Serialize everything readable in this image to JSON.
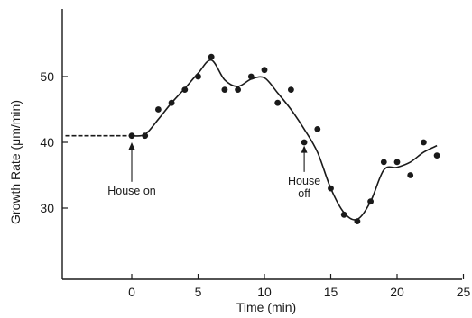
{
  "chart_data": {
    "type": "scatter",
    "title": "",
    "xlabel": "Time (min)",
    "ylabel": "Growth Rate (μm/min)",
    "xlim": [
      -5,
      25
    ],
    "ylim": [
      20,
      58
    ],
    "x_ticks": [
      0,
      5,
      10,
      15,
      20,
      25
    ],
    "y_ticks": [
      30,
      40,
      50
    ],
    "grid": false,
    "series": [
      {
        "kind": "points",
        "x": [
          0,
          1,
          2,
          3,
          4,
          5,
          6,
          7,
          8,
          9,
          10,
          11,
          12,
          13,
          14,
          15,
          16,
          17,
          18,
          19,
          20,
          21,
          22,
          23
        ],
        "y": [
          41,
          41,
          45,
          46,
          48,
          50,
          53,
          48,
          48,
          50,
          51,
          46,
          48,
          40,
          42,
          33,
          29,
          28,
          31,
          37,
          37,
          35,
          40,
          38
        ]
      },
      {
        "kind": "baseline",
        "x": [
          -5,
          0
        ],
        "y": [
          41,
          41
        ]
      },
      {
        "kind": "trend",
        "x": [
          0,
          1,
          2,
          3,
          4,
          5,
          6,
          7,
          8,
          9,
          10,
          11,
          12,
          13,
          14,
          15,
          16,
          17,
          18,
          19,
          20,
          21,
          22,
          23
        ],
        "y": [
          41,
          41.2,
          43.5,
          46,
          48.2,
          50.5,
          52.5,
          49.5,
          48.5,
          49.6,
          49.8,
          47.5,
          45,
          42,
          38.5,
          33,
          29.3,
          28.3,
          31,
          35.8,
          36.2,
          37,
          38.5,
          39.5
        ]
      }
    ],
    "annotations": [
      {
        "lines": [
          "House on"
        ],
        "x": 0,
        "arrow_from": 34,
        "arrow_to": 40
      },
      {
        "lines": [
          "House",
          "off"
        ],
        "x": 13,
        "arrow_from": 35.5,
        "arrow_to": 39.5
      }
    ]
  }
}
